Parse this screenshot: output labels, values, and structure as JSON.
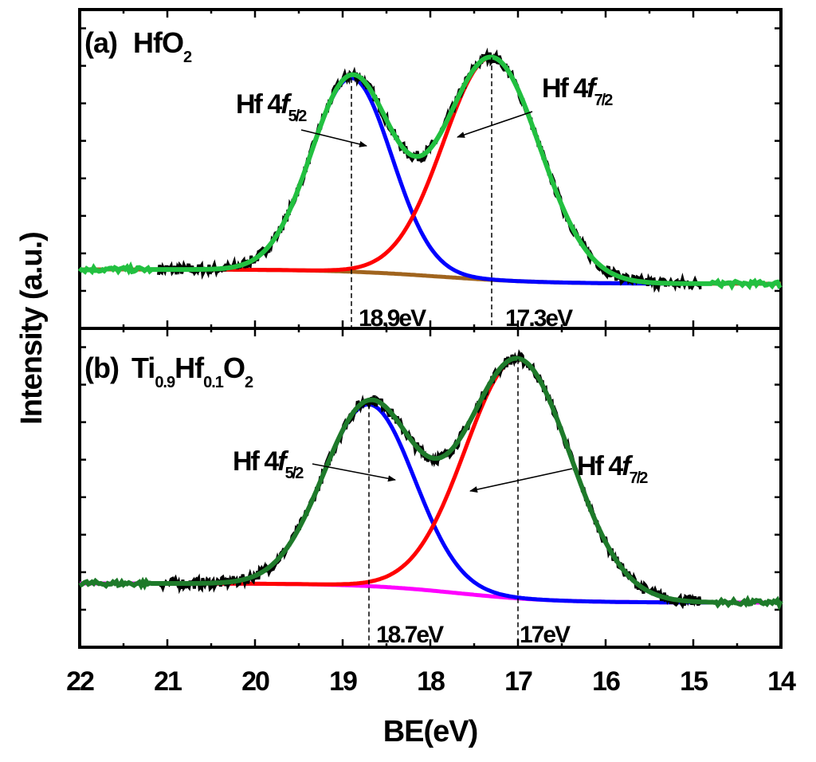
{
  "chart_data": {
    "type": "line",
    "xlabel": "BE(eV)",
    "ylabel": "Intensity (a.u.)",
    "xlim": [
      22,
      14
    ],
    "x_ticks": [
      "22",
      "21",
      "20",
      "19",
      "18",
      "17",
      "16",
      "15",
      "14"
    ],
    "panels": [
      {
        "id": "a",
        "label_prefix": "(a)",
        "sample": {
          "main": "HfO",
          "sub": "2"
        },
        "ylim": [
          0,
          1.12
        ],
        "background": {
          "name": "Background",
          "color": "#a0641e",
          "x0": 22.0,
          "x1": 14.0,
          "y_high": 0.04,
          "y_low": -0.02,
          "center": 17.9,
          "width": 0.6
        },
        "peaks": [
          {
            "name": "Hf 4f5/2",
            "position_eV": 18.9,
            "amplitude": 0.81,
            "sigma": 0.46,
            "color": "#0000ff",
            "label_main": "Hf 4",
            "label_italic": "f",
            "label_sub": "5/2",
            "value_label": "18.9eV"
          },
          {
            "name": "Hf 4f7/2",
            "position_eV": 17.3,
            "amplitude": 0.93,
            "sigma": 0.55,
            "color": "#ff0000",
            "label_main": "Hf 4",
            "label_italic": "f",
            "label_sub": "7/2",
            "value_label": "17.3eV"
          }
        ],
        "envelope": {
          "name": "Fit envelope",
          "color": "#22c040"
        },
        "raw": {
          "name": "Experimental data",
          "color": "#000000"
        }
      },
      {
        "id": "b",
        "label_prefix": "(b)",
        "sample_parts": [
          {
            "text": "Ti",
            "sub": "0.9"
          },
          {
            "text": "Hf",
            "sub": "0.1"
          },
          {
            "text": "O",
            "sub": "2"
          }
        ],
        "ylim": [
          0,
          1.12
        ],
        "background": {
          "name": "Background",
          "color": "#ff00ff",
          "x0": 22.0,
          "x1": 14.0,
          "y_high": 0.06,
          "y_low": -0.02,
          "center": 17.7,
          "width": 0.55
        },
        "peaks": [
          {
            "name": "Hf 4f5/2",
            "position_eV": 18.7,
            "amplitude": 0.76,
            "sigma": 0.52,
            "color": "#0000ff",
            "label_main": "Hf 4",
            "label_italic": "f",
            "label_sub": "5/2",
            "value_label": "18.7eV"
          },
          {
            "name": "Hf 4f7/2",
            "position_eV": 17.0,
            "amplitude": 1.0,
            "sigma": 0.6,
            "color": "#ff0000",
            "label_main": "Hf 4",
            "label_italic": "f",
            "label_sub": "7/2",
            "value_label": "17eV"
          }
        ],
        "envelope": {
          "name": "Fit envelope",
          "color": "#1e7a2a"
        },
        "raw": {
          "name": "Experimental data",
          "color": "#000000"
        }
      }
    ]
  }
}
